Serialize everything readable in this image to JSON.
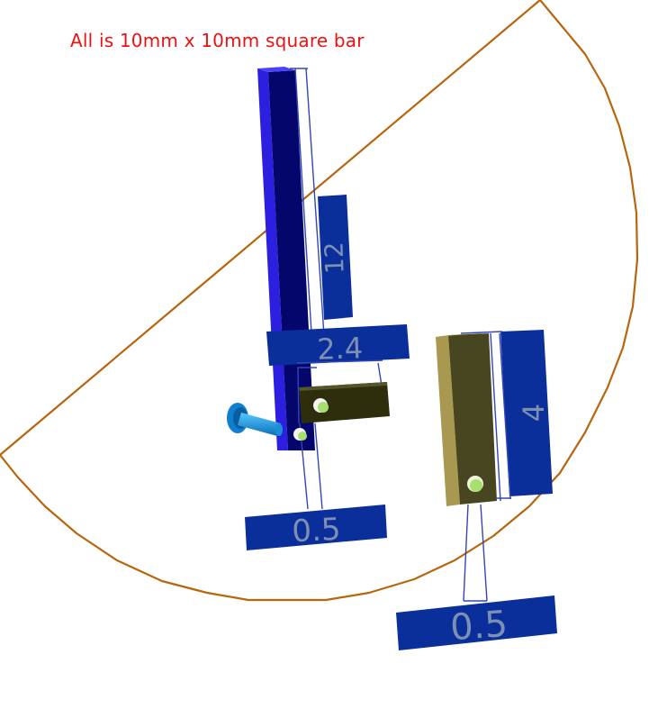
{
  "annotation": {
    "note": "All is 10mm x 10mm square bar"
  },
  "dimensions": {
    "vertical_bar_length": "12",
    "top_width": "2.4",
    "right_bar_length": "4",
    "left_offset": "0.5",
    "right_offset": "0.5"
  },
  "colors": {
    "background": "#ffffff",
    "note_text": "#ee1111",
    "circle": "#b8660e",
    "dimension_box": "#0a2f9a",
    "dimension_text": "#7d8fb4",
    "dimension_line": "#3346b8",
    "vertical_bar": "#1c14c8",
    "tan_bar": "#a89850",
    "dark_bar": "#3a3a12",
    "pivot_pin": "#1a8fd6",
    "hole_highlight": "#a8e070"
  }
}
